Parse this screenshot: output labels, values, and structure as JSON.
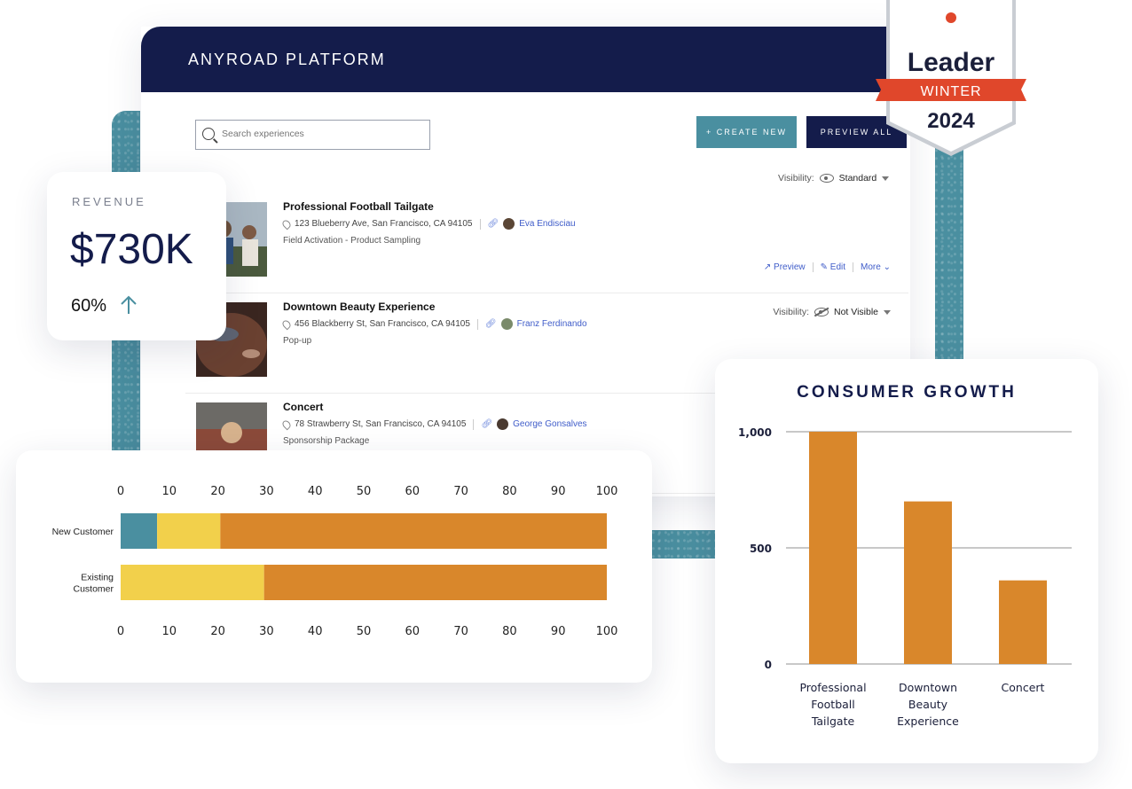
{
  "platform": {
    "title": "ANYROAD PLATFORM",
    "search": {
      "placeholder": "Search experiences"
    },
    "create_label": "+ CREATE NEW",
    "preview_all_label": "PREVIEW ALL",
    "visibility_label": "Visibility:",
    "experiences": [
      {
        "title": "Professional Football Tailgate",
        "address": "123 Blueberry Ave, San Francisco, CA 94105",
        "owner": "Eva Endisciau",
        "type": "Field Activation - Product Sampling",
        "visibility": "Standard",
        "actions": {
          "preview": "Preview",
          "edit": "Edit",
          "more": "More"
        }
      },
      {
        "title": "Downtown Beauty Experience",
        "address": "456 Blackberry St, San Francisco, CA 94105",
        "owner": "Franz Ferdinando",
        "type": "Pop-up",
        "visibility": "Not Visible"
      },
      {
        "title": "Concert",
        "address": "78 Strawberry St, San Francisco, CA 94105",
        "owner": "George Gonsalves",
        "type": "Sponsorship Package"
      }
    ]
  },
  "revenue": {
    "label": "REVENUE",
    "value": "$730K",
    "change": "60%"
  },
  "badge": {
    "title": "Leader",
    "season": "WINTER",
    "year": "2024"
  },
  "colors": {
    "navy": "#141c4b",
    "teal": "#4a8fa0",
    "orange": "#d9872b",
    "yellow": "#f2d04b",
    "badge_red": "#e0472b"
  },
  "chart_data": [
    {
      "type": "bar",
      "orientation": "horizontal",
      "stacked": true,
      "categories": [
        "New Customer",
        "Existing Customer"
      ],
      "series": [
        {
          "color": "#4a8fa0",
          "values": [
            7.5,
            0
          ]
        },
        {
          "color": "#f2d04b",
          "values": [
            13,
            29.5
          ]
        },
        {
          "color": "#d9872b",
          "values": [
            79.5,
            70.5
          ]
        }
      ],
      "xlim": [
        0,
        100
      ],
      "xticks": [
        0,
        10,
        20,
        30,
        40,
        50,
        60,
        70,
        80,
        90,
        100
      ],
      "axis_position": "top and bottom",
      "grid": false
    },
    {
      "type": "bar",
      "title": "CONSUMER GROWTH",
      "categories": [
        "Professional Football Tailgate",
        "Downtown Beauty Experience",
        "Concert"
      ],
      "category_lines": [
        [
          "Professional",
          "Football",
          "Tailgate"
        ],
        [
          "Downtown",
          "Beauty",
          "Experience"
        ],
        [
          "Concert"
        ]
      ],
      "values": [
        1000,
        700,
        360
      ],
      "ylim": [
        0,
        1000
      ],
      "yticks": [
        0,
        500,
        1000
      ],
      "ytick_labels": [
        "0",
        "500",
        "1,000"
      ],
      "grid": true,
      "color": "#d9872b"
    }
  ]
}
